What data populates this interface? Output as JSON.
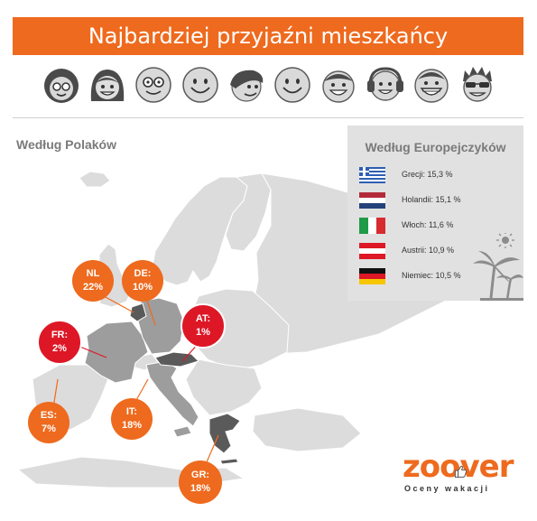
{
  "header": {
    "title": "Najbardziej przyjaźni mieszkańcy"
  },
  "faces": [
    "face-curly-hair-glasses-icon",
    "face-long-hair-icon",
    "face-glasses-icon",
    "face-smile-icon",
    "face-side-hair-icon",
    "face-smile-icon",
    "face-happy-icon",
    "face-headphones-icon",
    "face-grin-icon",
    "face-sunglasses-icon"
  ],
  "poles": {
    "title": "Według Polaków",
    "bubbles": [
      {
        "country": "NL",
        "value": "22%"
      },
      {
        "country": "DE:",
        "value": "10%"
      },
      {
        "country": "FR:",
        "value": "2%"
      },
      {
        "country": "AT:",
        "value": "1%"
      },
      {
        "country": "ES:",
        "value": "7%"
      },
      {
        "country": "IT:",
        "value": "18%"
      },
      {
        "country": "GR:",
        "value": "18%"
      }
    ]
  },
  "europeans": {
    "title": "Według Europejczyków",
    "items": [
      {
        "label": "Grecji: 15,3 %",
        "flag": "greece-flag-icon"
      },
      {
        "label": "Holandii: 15,1 %",
        "flag": "netherlands-flag-icon"
      },
      {
        "label": "Włoch: 11,6 %",
        "flag": "italy-flag-icon"
      },
      {
        "label": "Austrii: 10,9 %",
        "flag": "austria-flag-icon"
      },
      {
        "label": "Niemiec: 10,5 %",
        "flag": "germany-flag-icon"
      }
    ]
  },
  "brand": {
    "name": "zoover",
    "tagline": "Oceny wakacji"
  },
  "colors": {
    "orange": "#ee6a1e",
    "red": "#dd1726",
    "map_light": "#dcdcdc",
    "map_highlight": "#9d9d9d",
    "map_dark": "#5a5a5a"
  }
}
